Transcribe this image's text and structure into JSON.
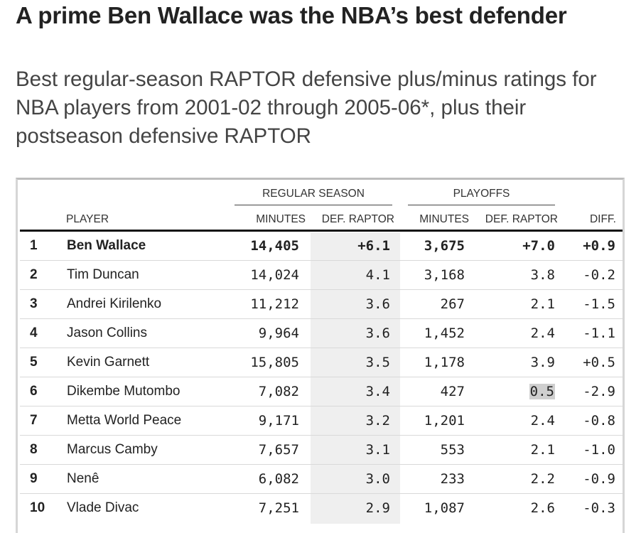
{
  "headline": "A prime Ben Wallace was the NBA’s best defender",
  "subhead": "Best regular-season RAPTOR defensive plus/minus ratings for NBA players from 2001-02 through 2005-06*, plus their postseason defensive RAPTOR",
  "table": {
    "groups": {
      "regular": "REGULAR SEASON",
      "playoffs": "PLAYOFFS"
    },
    "columns": {
      "player": "PLAYER",
      "reg_minutes": "MINUTES",
      "reg_def": "DEF. RAPTOR",
      "po_minutes": "MINUTES",
      "po_def": "DEF. RAPTOR",
      "diff": "DIFF."
    },
    "rows": [
      {
        "rank": "1",
        "player": "Ben Wallace",
        "reg_minutes": "14,405",
        "reg_def": "+6.1",
        "po_minutes": "3,675",
        "po_def": "+7.0",
        "diff": "+0.9",
        "bold": true,
        "highlight": false
      },
      {
        "rank": "2",
        "player": "Tim Duncan",
        "reg_minutes": "14,024",
        "reg_def": "4.1",
        "po_minutes": "3,168",
        "po_def": "3.8",
        "diff": "-0.2",
        "bold": false,
        "highlight": false
      },
      {
        "rank": "3",
        "player": "Andrei Kirilenko",
        "reg_minutes": "11,212",
        "reg_def": "3.6",
        "po_minutes": "267",
        "po_def": "2.1",
        "diff": "-1.5",
        "bold": false,
        "highlight": false
      },
      {
        "rank": "4",
        "player": "Jason Collins",
        "reg_minutes": "9,964",
        "reg_def": "3.6",
        "po_minutes": "1,452",
        "po_def": "2.4",
        "diff": "-1.1",
        "bold": false,
        "highlight": false
      },
      {
        "rank": "5",
        "player": "Kevin Garnett",
        "reg_minutes": "15,805",
        "reg_def": "3.5",
        "po_minutes": "1,178",
        "po_def": "3.9",
        "diff": "+0.5",
        "bold": false,
        "highlight": false
      },
      {
        "rank": "6",
        "player": "Dikembe Mutombo",
        "reg_minutes": "7,082",
        "reg_def": "3.4",
        "po_minutes": "427",
        "po_def": "0.5",
        "diff": "-2.9",
        "bold": false,
        "highlight": true
      },
      {
        "rank": "7",
        "player": "Metta World Peace",
        "reg_minutes": "9,171",
        "reg_def": "3.2",
        "po_minutes": "1,201",
        "po_def": "2.4",
        "diff": "-0.8",
        "bold": false,
        "highlight": false
      },
      {
        "rank": "8",
        "player": "Marcus Camby",
        "reg_minutes": "7,657",
        "reg_def": "3.1",
        "po_minutes": "553",
        "po_def": "2.1",
        "diff": "-1.0",
        "bold": false,
        "highlight": false
      },
      {
        "rank": "9",
        "player": "Nenê",
        "reg_minutes": "6,082",
        "reg_def": "3.0",
        "po_minutes": "233",
        "po_def": "2.2",
        "diff": "-0.9",
        "bold": false,
        "highlight": false
      },
      {
        "rank": "10",
        "player": "Vlade Divac",
        "reg_minutes": "7,251",
        "reg_def": "2.9",
        "po_minutes": "1,087",
        "po_def": "2.6",
        "diff": "-0.3",
        "bold": false,
        "highlight": false
      }
    ]
  },
  "colors": {
    "text": "#222222",
    "subtext": "#444444",
    "shade": "#efefef",
    "highlight": "#cfcfcf",
    "rule": "#111111"
  }
}
